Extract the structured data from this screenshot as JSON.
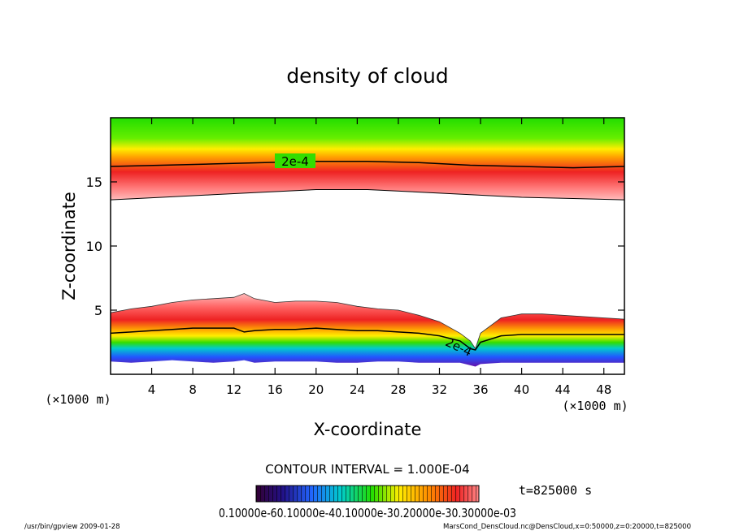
{
  "chart_data": {
    "type": "heatmap",
    "title": "density of cloud",
    "xlabel": "X-coordinate",
    "ylabel": "Z-coordinate",
    "x_unit": "(×1000 m)",
    "y_unit": "(×1000 m)",
    "xlim": [
      0,
      50
    ],
    "ylim": [
      0,
      20
    ],
    "x_ticks": [
      "4",
      "8",
      "12",
      "16",
      "20",
      "24",
      "28",
      "32",
      "36",
      "40",
      "44",
      "48"
    ],
    "y_ticks": [
      "5",
      "10",
      "15"
    ],
    "contour_interval_text": "CONTOUR INTERVAL = 1.000E-04",
    "contour_labels": [
      "2e-4",
      "2e-4"
    ],
    "time_label": "t=825000 s",
    "colorbar_tick_text": "0.10000e-60.10000e-40.10000e-30.20000e-30.30000e-03",
    "upper_layer": {
      "x": [
        0,
        5,
        10,
        15,
        20,
        25,
        30,
        35,
        40,
        45,
        50
      ],
      "base_km": [
        13.6,
        13.8,
        14.0,
        14.2,
        14.4,
        14.4,
        14.2,
        14.0,
        13.8,
        13.7,
        13.6
      ],
      "contour_2e-4_km": [
        16.2,
        16.3,
        16.4,
        16.5,
        16.6,
        16.6,
        16.5,
        16.3,
        16.2,
        16.1,
        16.2
      ]
    },
    "lower_layer": {
      "x": [
        0,
        2,
        4,
        6,
        8,
        10,
        12,
        13,
        14,
        16,
        18,
        20,
        22,
        24,
        26,
        28,
        30,
        32,
        34,
        35,
        35.5,
        36,
        38,
        40,
        42,
        44,
        46,
        48,
        50
      ],
      "top_km": [
        4.8,
        5.1,
        5.3,
        5.6,
        5.8,
        5.9,
        6.0,
        6.3,
        5.9,
        5.6,
        5.7,
        5.7,
        5.6,
        5.3,
        5.1,
        5.0,
        4.6,
        4.1,
        3.2,
        2.6,
        2.0,
        3.2,
        4.4,
        4.7,
        4.7,
        4.6,
        4.5,
        4.4,
        4.3
      ],
      "contour_2e-4_km": [
        3.2,
        3.3,
        3.4,
        3.5,
        3.6,
        3.6,
        3.6,
        3.3,
        3.4,
        3.5,
        3.5,
        3.6,
        3.5,
        3.4,
        3.4,
        3.3,
        3.2,
        3.0,
        2.6,
        2.0,
        1.9,
        2.5,
        3.0,
        3.1,
        3.1,
        3.1,
        3.1,
        3.1,
        3.1
      ],
      "base_km": [
        1.0,
        0.9,
        1.0,
        1.1,
        1.0,
        0.9,
        1.0,
        1.1,
        0.9,
        1.0,
        1.0,
        1.0,
        0.9,
        0.9,
        1.0,
        1.0,
        0.9,
        0.9,
        0.9,
        0.7,
        0.6,
        0.8,
        0.9,
        0.9,
        0.9,
        0.9,
        0.9,
        0.9,
        0.9
      ]
    },
    "colors": {
      "green": "#22dd00",
      "yellow": "#ffee00",
      "orange": "#ff9900",
      "red": "#ee2222",
      "pink": "#ffaaaa",
      "cyan": "#00cccc",
      "blue": "#2244ff",
      "purple": "#7722aa"
    }
  },
  "footer": {
    "left": "/usr/bin/gpview  2009-01-28",
    "right": "MarsCond_DensCloud.nc@DensCloud,x=0:50000,z=0:20000,t=825000"
  }
}
